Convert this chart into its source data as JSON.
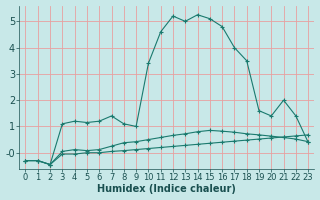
{
  "bg_color": "#c8e8e8",
  "grid_color": "#e8a0a0",
  "line_color": "#1a7a6e",
  "xlabel": "Humidex (Indice chaleur)",
  "xlabel_fontsize": 7,
  "tick_fontsize": 6,
  "xlim": [
    -0.5,
    23.5
  ],
  "ylim": [
    -0.6,
    5.6
  ],
  "yticks": [
    0,
    1,
    2,
    3,
    4,
    5
  ],
  "ytick_labels": [
    "-0",
    "1",
    "2",
    "3",
    "4",
    "5"
  ],
  "xticks": [
    0,
    1,
    2,
    3,
    4,
    5,
    6,
    7,
    8,
    9,
    10,
    11,
    12,
    13,
    14,
    15,
    16,
    17,
    18,
    19,
    20,
    21,
    22,
    23
  ],
  "series1_x": [
    0,
    1,
    2,
    3,
    4,
    5,
    6,
    7,
    8,
    9,
    10,
    11,
    12,
    13,
    14,
    15,
    16,
    17,
    18,
    19,
    20,
    21,
    22,
    23
  ],
  "series1_y": [
    -0.3,
    -0.3,
    -0.45,
    -0.05,
    -0.05,
    -0.0,
    0.0,
    0.05,
    0.08,
    0.12,
    0.16,
    0.2,
    0.24,
    0.28,
    0.32,
    0.36,
    0.4,
    0.44,
    0.48,
    0.52,
    0.56,
    0.6,
    0.64,
    0.68
  ],
  "series2_x": [
    0,
    1,
    2,
    3,
    4,
    5,
    6,
    7,
    8,
    9,
    10,
    11,
    12,
    13,
    14,
    15,
    16,
    17,
    18,
    19,
    20,
    21,
    22,
    23
  ],
  "series2_y": [
    -0.3,
    -0.3,
    -0.45,
    0.05,
    0.12,
    0.08,
    0.12,
    0.25,
    0.38,
    0.42,
    0.5,
    0.58,
    0.66,
    0.72,
    0.8,
    0.85,
    0.82,
    0.78,
    0.72,
    0.68,
    0.63,
    0.58,
    0.52,
    0.42
  ],
  "series3_x": [
    0,
    1,
    2,
    3,
    4,
    5,
    6,
    7,
    8,
    9,
    10,
    11,
    12,
    13,
    14,
    15,
    16,
    17,
    18,
    19,
    20,
    21,
    22,
    23
  ],
  "series3_y": [
    -0.3,
    -0.3,
    -0.45,
    1.1,
    1.2,
    1.15,
    1.2,
    1.4,
    1.1,
    1.0,
    3.4,
    4.6,
    5.2,
    5.0,
    5.25,
    5.1,
    4.8,
    4.0,
    3.5,
    1.6,
    1.4,
    2.0,
    1.4,
    0.4
  ]
}
